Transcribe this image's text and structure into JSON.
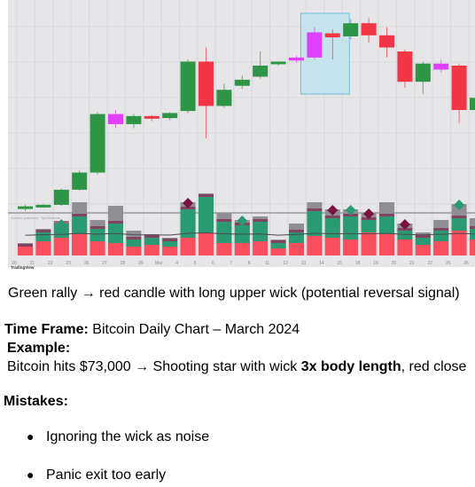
{
  "chart_data": {
    "type": "candlestick",
    "watermark": "TradingView",
    "volume_legend": "Volume (candles) · SpotVolume",
    "x_ticks": [
      "20",
      "21",
      "22",
      "23",
      "26",
      "27",
      "28",
      "29",
      "Mar",
      "4",
      "5",
      "6",
      "7",
      "8",
      "11",
      "12",
      "13",
      "14",
      "15",
      "18",
      "19",
      "20",
      "21",
      "22",
      "25",
      "26",
      "27",
      "28"
    ],
    "candles": [
      {
        "o": 53000,
        "h": 53400,
        "l": 52800,
        "c": 53250,
        "color": "green"
      },
      {
        "o": 53250,
        "h": 53500,
        "l": 53100,
        "c": 53400,
        "color": "green"
      },
      {
        "o": 53400,
        "h": 55000,
        "l": 53300,
        "c": 54900,
        "color": "green"
      },
      {
        "o": 54900,
        "h": 56800,
        "l": 54800,
        "c": 56600,
        "color": "green"
      },
      {
        "o": 56600,
        "h": 62600,
        "l": 56400,
        "c": 62400,
        "color": "green"
      },
      {
        "o": 62400,
        "h": 62800,
        "l": 61000,
        "c": 61400,
        "color": "magenta"
      },
      {
        "o": 61400,
        "h": 62400,
        "l": 61000,
        "c": 62200,
        "color": "green"
      },
      {
        "o": 62200,
        "h": 62300,
        "l": 61700,
        "c": 62000,
        "color": "red"
      },
      {
        "o": 62000,
        "h": 62600,
        "l": 61800,
        "c": 62500,
        "color": "green"
      },
      {
        "o": 62700,
        "h": 67800,
        "l": 62500,
        "c": 67600,
        "color": "green"
      },
      {
        "o": 67600,
        "h": 69000,
        "l": 60000,
        "c": 63200,
        "color": "red"
      },
      {
        "o": 63200,
        "h": 65400,
        "l": 63000,
        "c": 64800,
        "color": "green"
      },
      {
        "o": 65200,
        "h": 66200,
        "l": 64900,
        "c": 65800,
        "color": "green"
      },
      {
        "o": 66100,
        "h": 68600,
        "l": 65900,
        "c": 67200,
        "color": "green"
      },
      {
        "o": 67400,
        "h": 67600,
        "l": 67200,
        "c": 67600,
        "color": "green"
      },
      {
        "o": 67700,
        "h": 68200,
        "l": 67500,
        "c": 68000,
        "color": "magenta"
      },
      {
        "o": 68000,
        "h": 71000,
        "l": 67800,
        "c": 70500,
        "color": "magenta"
      },
      {
        "o": 70400,
        "h": 70800,
        "l": 67800,
        "c": 70000,
        "color": "red"
      },
      {
        "o": 70100,
        "h": 71800,
        "l": 69800,
        "c": 71400,
        "color": "green"
      },
      {
        "o": 71400,
        "h": 71900,
        "l": 69500,
        "c": 70200,
        "color": "red"
      },
      {
        "o": 70200,
        "h": 71000,
        "l": 68000,
        "c": 69000,
        "color": "red"
      },
      {
        "o": 68600,
        "h": 68800,
        "l": 65000,
        "c": 65600,
        "color": "red"
      },
      {
        "o": 65600,
        "h": 67600,
        "l": 64400,
        "c": 67400,
        "color": "green"
      },
      {
        "o": 67400,
        "h": 67800,
        "l": 66500,
        "c": 66800,
        "color": "magenta"
      },
      {
        "o": 67200,
        "h": 67400,
        "l": 61500,
        "c": 62800,
        "color": "red"
      },
      {
        "o": 62800,
        "h": 64500,
        "l": 62000,
        "c": 64000,
        "color": "green"
      }
    ],
    "volume": [
      {
        "grey": 14,
        "red": 10,
        "green": 0,
        "marker": false
      },
      {
        "grey": 30,
        "red": 16,
        "green": 10,
        "marker": false
      },
      {
        "grey": 36,
        "red": 20,
        "green": 16,
        "marker": true
      },
      {
        "grey": 60,
        "red": 24,
        "green": 20,
        "marker": false
      },
      {
        "grey": 40,
        "red": 16,
        "green": 14,
        "marker": false
      },
      {
        "grey": 56,
        "red": 14,
        "green": 22,
        "marker": false
      },
      {
        "grey": 28,
        "red": 10,
        "green": 8,
        "marker": false
      },
      {
        "grey": 24,
        "red": 12,
        "green": 8,
        "marker": false
      },
      {
        "grey": 20,
        "red": 10,
        "green": 6,
        "marker": false
      },
      {
        "grey": 60,
        "red": 20,
        "green": 32,
        "marker": true
      },
      {
        "grey": 70,
        "red": 26,
        "green": 40,
        "marker": false
      },
      {
        "grey": 48,
        "red": 14,
        "green": 24,
        "marker": false
      },
      {
        "grey": 40,
        "red": 14,
        "green": 20,
        "marker": true
      },
      {
        "grey": 44,
        "red": 16,
        "green": 22,
        "marker": false
      },
      {
        "grey": 18,
        "red": 8,
        "green": 6,
        "marker": false
      },
      {
        "grey": 36,
        "red": 14,
        "green": 12,
        "marker": false
      },
      {
        "grey": 60,
        "red": 22,
        "green": 28,
        "marker": false
      },
      {
        "grey": 52,
        "red": 20,
        "green": 22,
        "marker": true
      },
      {
        "grey": 52,
        "red": 18,
        "green": 26,
        "marker": true
      },
      {
        "grey": 48,
        "red": 26,
        "green": 14,
        "marker": true
      },
      {
        "grey": 60,
        "red": 24,
        "green": 20,
        "marker": false
      },
      {
        "grey": 36,
        "red": 18,
        "green": 10,
        "marker": true
      },
      {
        "grey": 26,
        "red": 12,
        "green": 8,
        "marker": false
      },
      {
        "grey": 40,
        "red": 16,
        "green": 12,
        "marker": false
      },
      {
        "grey": 58,
        "red": 28,
        "green": 14,
        "marker": true
      },
      {
        "grey": 42,
        "red": 18,
        "green": 12,
        "marker": false
      }
    ],
    "highlight_candle_indices": [
      16,
      18
    ],
    "colors": {
      "green": "#2e9446",
      "red": "#f23645",
      "magenta": "#e040fb",
      "highlight_fill": "#bfe3ee",
      "highlight_stroke": "#6bbfdc",
      "vol_grey": "#8e8e94",
      "vol_red": "#f84e5e",
      "vol_green": "#2a9a73",
      "marker": "#7a1340"
    }
  },
  "text": {
    "caption": "Green rally → red candle with long upper wick (potential reversal signal)",
    "timeframe_label": "Time Frame:",
    "timeframe_value": " Bitcoin Daily Chart – March 2024",
    "example_label": "Example:",
    "example_pre": "Bitcoin hits $73,000 → Shooting star with wick ",
    "example_bold": "3x body length",
    "example_post": ", red close",
    "mistakes_label": "Mistakes:",
    "bullets": [
      "Ignoring the wick as noise",
      "Panic exit too early"
    ]
  }
}
